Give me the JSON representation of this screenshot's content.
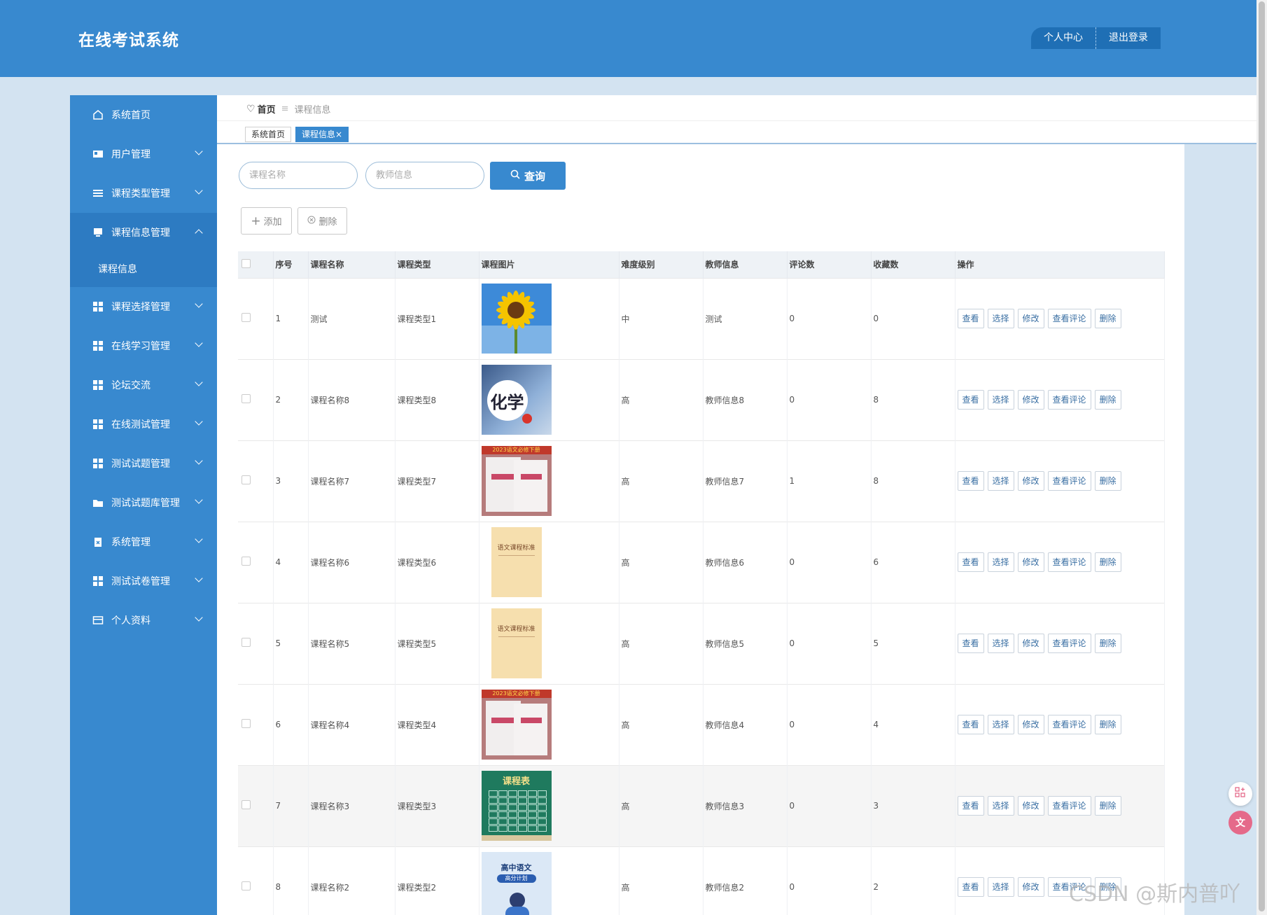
{
  "header": {
    "title": "在线考试系统",
    "personal_center": "个人中心",
    "logout": "退出登录"
  },
  "sidebar": {
    "items": [
      {
        "label": "系统首页",
        "icon": "home-icon",
        "chevron": false
      },
      {
        "label": "用户管理",
        "icon": "user-card-icon",
        "chevron": true
      },
      {
        "label": "课程类型管理",
        "icon": "list-icon",
        "chevron": true
      },
      {
        "label": "课程信息管理",
        "icon": "monitor-icon",
        "chevron": true,
        "open": true
      },
      {
        "label": "课程选择管理",
        "icon": "grid-icon",
        "chevron": true
      },
      {
        "label": "在线学习管理",
        "icon": "grid-icon",
        "chevron": true
      },
      {
        "label": "论坛交流",
        "icon": "grid-icon",
        "chevron": true
      },
      {
        "label": "在线测试管理",
        "icon": "grid-icon",
        "chevron": true
      },
      {
        "label": "测试试题管理",
        "icon": "grid-icon",
        "chevron": true
      },
      {
        "label": "测试试题库管理",
        "icon": "folder-icon",
        "chevron": true
      },
      {
        "label": "系统管理",
        "icon": "clipboard-icon",
        "chevron": true
      },
      {
        "label": "测试试卷管理",
        "icon": "grid-icon",
        "chevron": true
      },
      {
        "label": "个人资料",
        "icon": "id-card-icon",
        "chevron": true
      }
    ],
    "submenu": {
      "label": "课程信息"
    }
  },
  "breadcrumb": {
    "home": "首页",
    "separator": "≡",
    "current": "课程信息"
  },
  "tabs": {
    "home": "系统首页",
    "current": "课程信息",
    "close": "×"
  },
  "search": {
    "course_name_placeholder": "课程名称",
    "teacher_placeholder": "教师信息",
    "query_label": "查询"
  },
  "actions": {
    "add_label": "添加",
    "delete_label": "删除"
  },
  "table": {
    "headers": [
      "序号",
      "课程名称",
      "课程类型",
      "课程图片",
      "难度级别",
      "教师信息",
      "评论数",
      "收藏数",
      "操作"
    ],
    "rows": [
      {
        "no": "1",
        "name": "测试",
        "type": "课程类型1",
        "image": "sunflower",
        "level": "中",
        "teacher": "测试",
        "comments": "0",
        "favorites": "0"
      },
      {
        "no": "2",
        "name": "课程名称8",
        "type": "课程类型8",
        "image": "chemistry-book",
        "level": "高",
        "teacher": "教师信息8",
        "comments": "0",
        "favorites": "8"
      },
      {
        "no": "3",
        "name": "课程名称7",
        "type": "课程类型7",
        "image": "exam-books",
        "level": "高",
        "teacher": "教师信息7",
        "comments": "1",
        "favorites": "8"
      },
      {
        "no": "4",
        "name": "课程名称6",
        "type": "课程类型6",
        "image": "chinese-standard-book",
        "level": "高",
        "teacher": "教师信息6",
        "comments": "0",
        "favorites": "6"
      },
      {
        "no": "5",
        "name": "课程名称5",
        "type": "课程类型5",
        "image": "chinese-standard-book",
        "level": "高",
        "teacher": "教师信息5",
        "comments": "0",
        "favorites": "5"
      },
      {
        "no": "6",
        "name": "课程名称4",
        "type": "课程类型4",
        "image": "exam-books",
        "level": "高",
        "teacher": "教师信息4",
        "comments": "0",
        "favorites": "4"
      },
      {
        "no": "7",
        "name": "课程名称3",
        "type": "课程类型3",
        "image": "timetable",
        "level": "高",
        "teacher": "教师信息3",
        "comments": "0",
        "favorites": "3"
      },
      {
        "no": "8",
        "name": "课程名称2",
        "type": "课程类型2",
        "image": "chinese-plan",
        "level": "高",
        "teacher": "教师信息2",
        "comments": "0",
        "favorites": "2"
      }
    ],
    "row_buttons": [
      "查看",
      "选择",
      "修改",
      "查看评论",
      "删除"
    ]
  },
  "images": {
    "chemistry_text": "化学",
    "exam_top_text": "2023语文必修下册",
    "standard_title": "语文课程标准",
    "timetable_title": "课程表",
    "plan_title": "高中语文",
    "plan_sub": "高分计划"
  },
  "watermark": "CSDN @斯内普吖",
  "colors": {
    "primary": "#3889cf",
    "background": "#d3e3f1",
    "header_button": "#1f6fb5"
  }
}
